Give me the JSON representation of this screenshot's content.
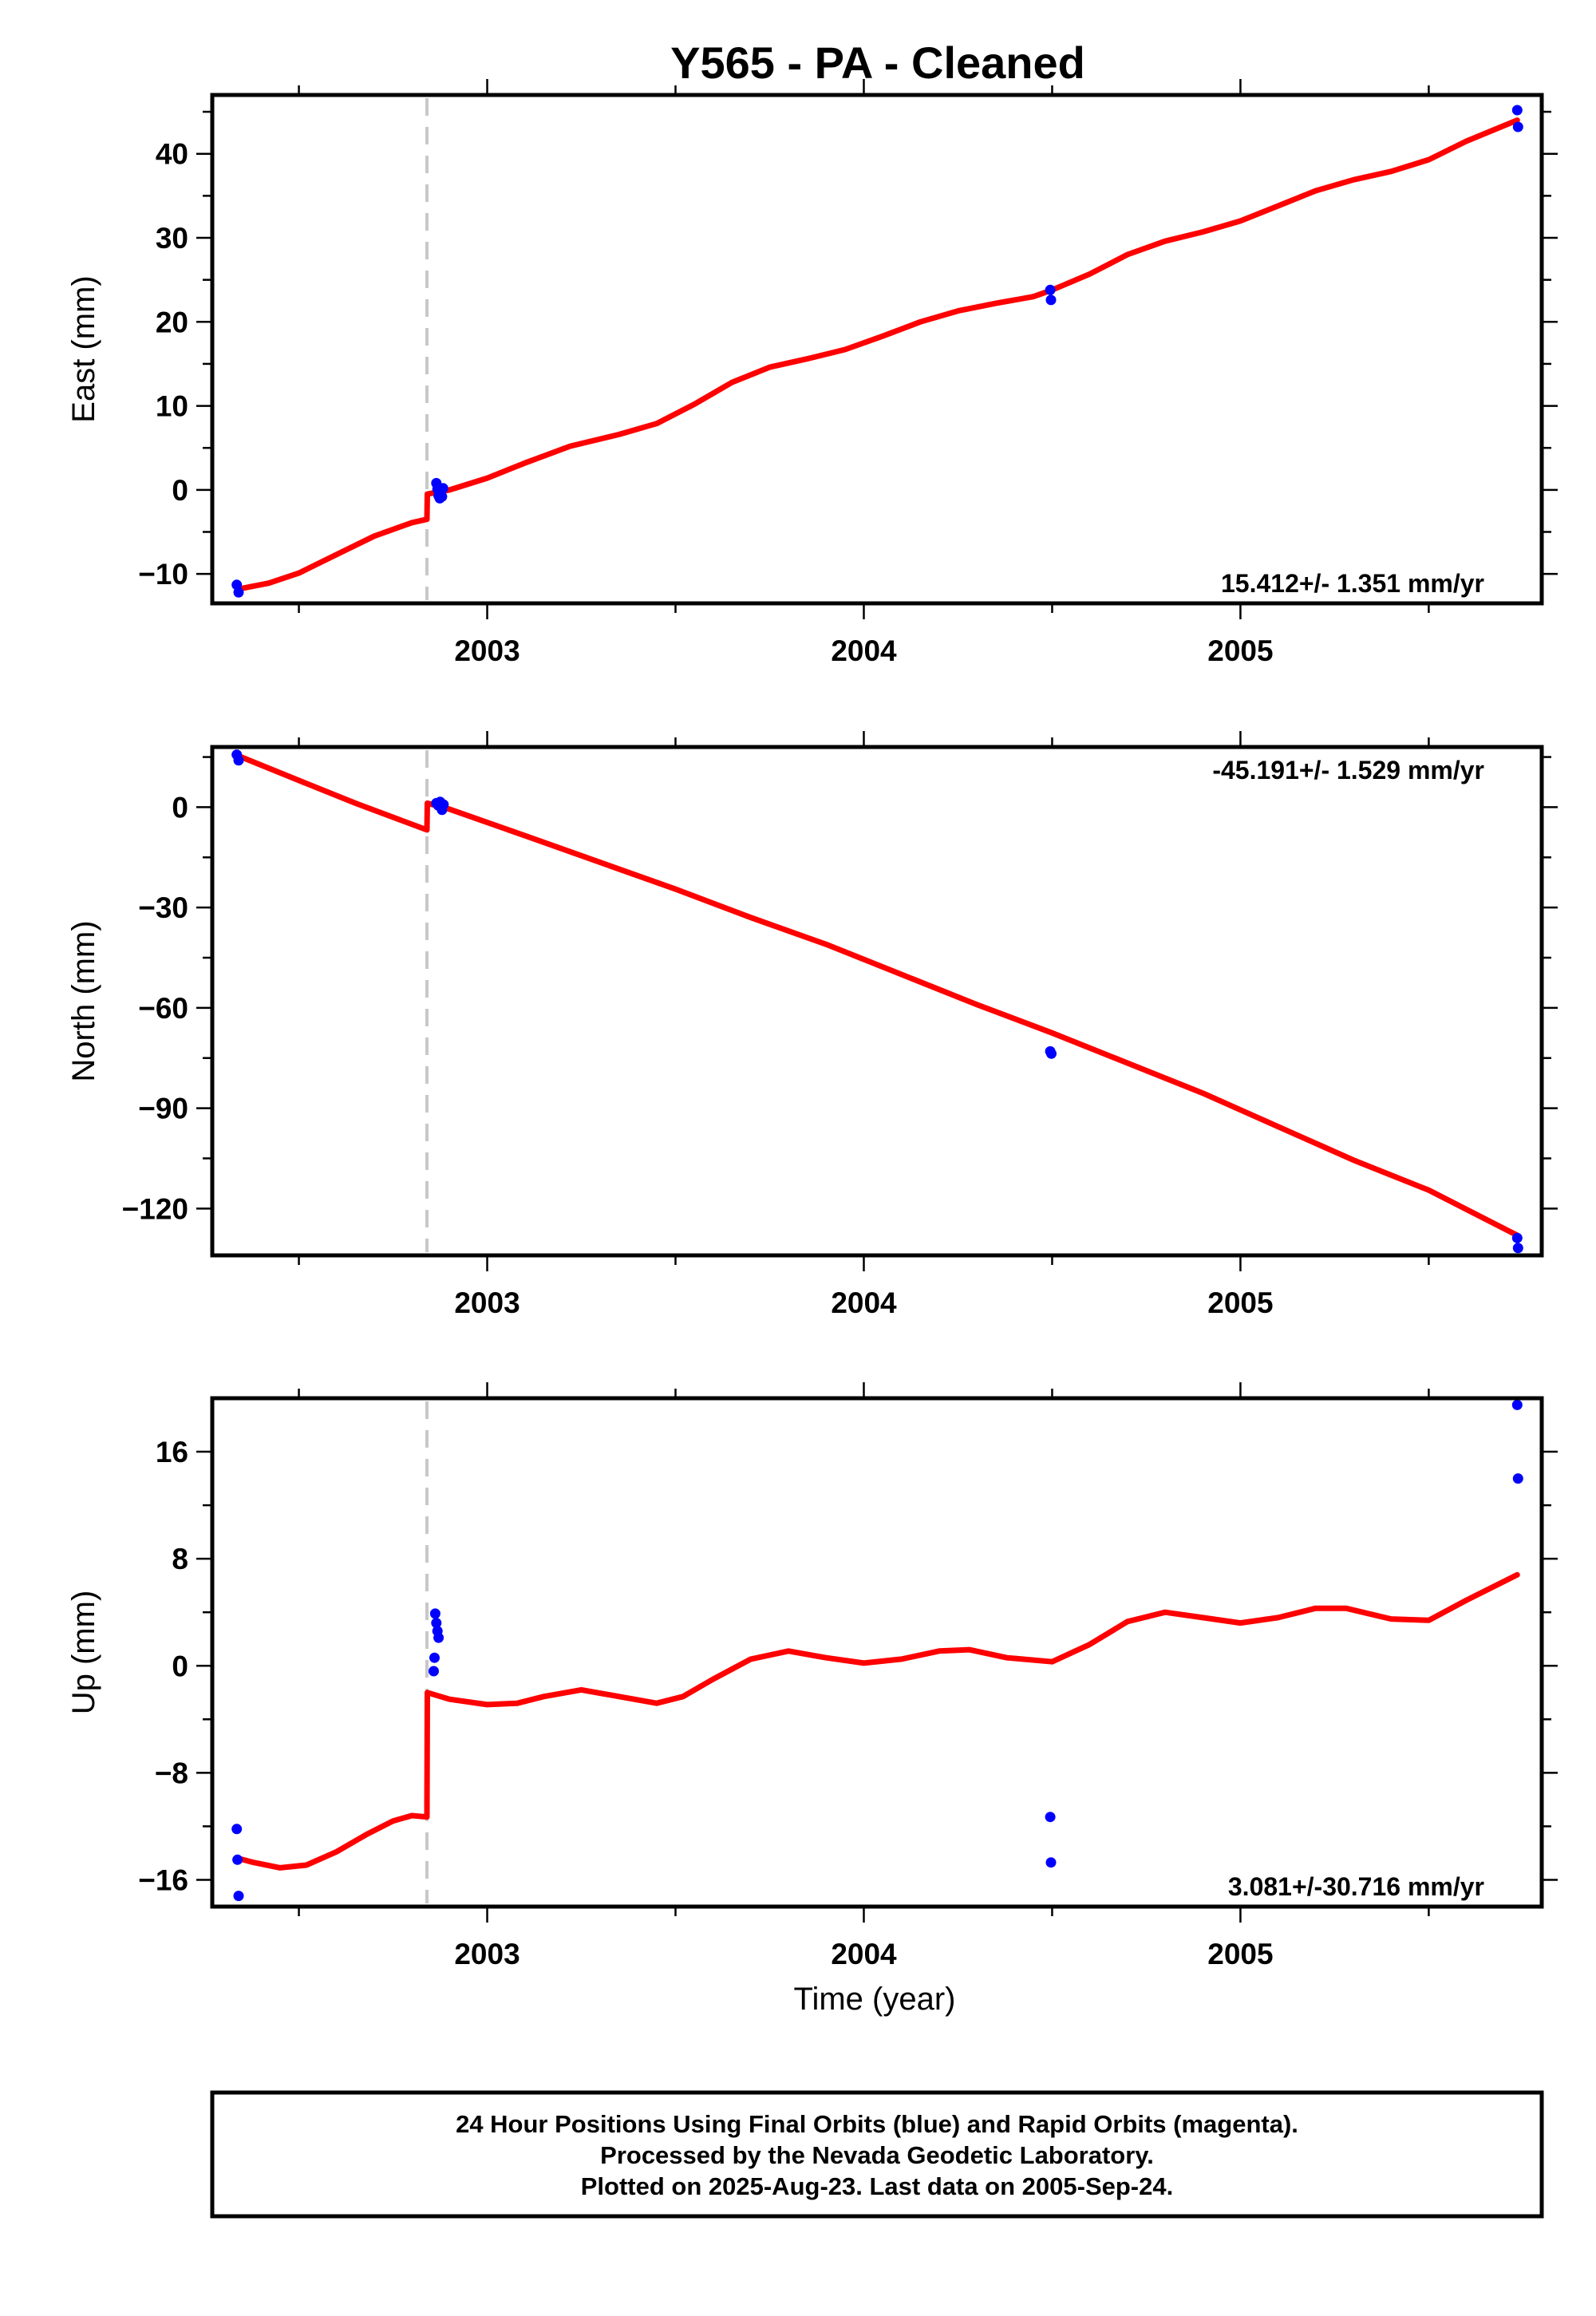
{
  "figure": {
    "title": "Y565  - PA - Cleaned",
    "xlabel": "Time (year)",
    "equipment_change_year": 2002.84,
    "footer": [
      "24 Hour Positions Using Final Orbits (blue) and Rapid Orbits (magenta).",
      "Processed by the Nevada Geodetic Laboratory.",
      "Plotted on 2025-Aug-23. Last data on 2005-Sep-24."
    ],
    "colors": {
      "data": "#0000ff",
      "model": "#ff0000",
      "equipment_line": "#c8c8c8"
    }
  },
  "chart_data": [
    {
      "type": "scatter",
      "panel": "east",
      "ylabel": "East (mm)",
      "rate": "15.412+/- 1.351 mm/yr",
      "rate_position": "bottom-right",
      "xlim": [
        2002.27,
        2005.8
      ],
      "ylim": [
        -13.5,
        47
      ],
      "xticks": [
        2003,
        2004,
        2005
      ],
      "xminor": [
        2002.5,
        2003.5,
        2004.5,
        2005.5
      ],
      "yticks": [
        -10,
        0,
        10,
        20,
        30,
        40
      ],
      "yminor": [
        -5,
        5,
        15,
        25,
        35,
        45
      ],
      "points": [
        [
          2002.335,
          -11.3
        ],
        [
          2002.34,
          -12.2
        ],
        [
          2002.865,
          0.8
        ],
        [
          2002.868,
          0.1
        ],
        [
          2002.871,
          -0.7
        ],
        [
          2002.874,
          -1.0
        ],
        [
          2002.877,
          -0.4
        ],
        [
          2002.88,
          -0.8
        ],
        [
          2002.883,
          0.2
        ],
        [
          2004.495,
          23.8
        ],
        [
          2004.497,
          22.6
        ],
        [
          2005.735,
          45.2
        ],
        [
          2005.737,
          43.2
        ]
      ],
      "model": [
        [
          2002.34,
          -11.8
        ],
        [
          2002.42,
          -11.1
        ],
        [
          2002.5,
          -9.9
        ],
        [
          2002.6,
          -7.7
        ],
        [
          2002.7,
          -5.5
        ],
        [
          2002.8,
          -3.9
        ],
        [
          2002.84,
          -3.5
        ],
        [
          2002.841,
          -0.5
        ],
        [
          2002.9,
          0.0
        ],
        [
          2003.0,
          1.4
        ],
        [
          2003.1,
          3.2
        ],
        [
          2003.22,
          5.2
        ],
        [
          2003.35,
          6.6
        ],
        [
          2003.45,
          7.9
        ],
        [
          2003.55,
          10.2
        ],
        [
          2003.65,
          12.8
        ],
        [
          2003.75,
          14.6
        ],
        [
          2003.85,
          15.6
        ],
        [
          2003.95,
          16.7
        ],
        [
          2004.05,
          18.3
        ],
        [
          2004.15,
          20.0
        ],
        [
          2004.25,
          21.3
        ],
        [
          2004.35,
          22.2
        ],
        [
          2004.45,
          23.0
        ],
        [
          2004.5,
          23.8
        ],
        [
          2004.6,
          25.7
        ],
        [
          2004.7,
          28.0
        ],
        [
          2004.8,
          29.6
        ],
        [
          2004.9,
          30.7
        ],
        [
          2005.0,
          32.0
        ],
        [
          2005.1,
          33.8
        ],
        [
          2005.2,
          35.6
        ],
        [
          2005.3,
          36.9
        ],
        [
          2005.4,
          37.9
        ],
        [
          2005.5,
          39.3
        ],
        [
          2005.6,
          41.5
        ],
        [
          2005.735,
          44.0
        ]
      ]
    },
    {
      "type": "scatter",
      "panel": "north",
      "ylabel": "North (mm)",
      "rate": "-45.191+/- 1.529 mm/yr",
      "rate_position": "top-right",
      "xlim": [
        2002.27,
        2005.8
      ],
      "ylim": [
        -134,
        18
      ],
      "xticks": [
        2003,
        2004,
        2005
      ],
      "xminor": [
        2002.5,
        2003.5,
        2004.5,
        2005.5
      ],
      "yticks": [
        -120,
        -90,
        -60,
        -30,
        0
      ],
      "yminor": [
        -105,
        -75,
        -45,
        -15,
        15
      ],
      "points": [
        [
          2002.335,
          15.7
        ],
        [
          2002.34,
          14.0
        ],
        [
          2002.865,
          1.2
        ],
        [
          2002.87,
          0.5
        ],
        [
          2002.875,
          1.6
        ],
        [
          2002.88,
          -0.8
        ],
        [
          2002.884,
          0.8
        ],
        [
          2004.495,
          -73.0
        ],
        [
          2004.498,
          -73.7
        ],
        [
          2005.735,
          -128.8
        ],
        [
          2005.737,
          -131.8
        ]
      ],
      "model": [
        [
          2002.34,
          15.3
        ],
        [
          2002.5,
          8.0
        ],
        [
          2002.65,
          1.2
        ],
        [
          2002.84,
          -6.8
        ],
        [
          2002.841,
          1.2
        ],
        [
          2002.9,
          -0.6
        ],
        [
          2003.1,
          -8.5
        ],
        [
          2003.3,
          -16.5
        ],
        [
          2003.5,
          -24.5
        ],
        [
          2003.7,
          -33.0
        ],
        [
          2003.9,
          -41.0
        ],
        [
          2004.1,
          -50.0
        ],
        [
          2004.3,
          -59.0
        ],
        [
          2004.5,
          -67.5
        ],
        [
          2004.7,
          -76.5
        ],
        [
          2004.9,
          -85.5
        ],
        [
          2005.1,
          -95.5
        ],
        [
          2005.3,
          -105.5
        ],
        [
          2005.5,
          -114.5
        ],
        [
          2005.735,
          -128.0
        ]
      ]
    },
    {
      "type": "scatter",
      "panel": "up",
      "ylabel": "Up (mm)",
      "rate": "3.081+/-30.716 mm/yr",
      "rate_position": "bottom-right",
      "xlim": [
        2002.27,
        2005.8
      ],
      "ylim": [
        -18,
        20
      ],
      "xticks": [
        2003,
        2004,
        2005
      ],
      "xminor": [
        2002.5,
        2003.5,
        2004.5,
        2005.5
      ],
      "yticks": [
        -16,
        -8,
        0,
        8,
        16
      ],
      "yminor": [
        -12,
        -4,
        4,
        12
      ],
      "points": [
        [
          2002.335,
          -12.2
        ],
        [
          2002.337,
          -14.5
        ],
        [
          2002.34,
          -17.2
        ],
        [
          2002.862,
          3.9
        ],
        [
          2002.865,
          3.2
        ],
        [
          2002.868,
          2.6
        ],
        [
          2002.871,
          2.1
        ],
        [
          2002.86,
          0.6
        ],
        [
          2002.858,
          -0.4
        ],
        [
          2004.495,
          -11.3
        ],
        [
          2004.497,
          -14.7
        ],
        [
          2005.735,
          19.5
        ],
        [
          2005.737,
          14.0
        ]
      ],
      "model": [
        [
          2002.34,
          -14.4
        ],
        [
          2002.38,
          -14.7
        ],
        [
          2002.45,
          -15.1
        ],
        [
          2002.52,
          -14.9
        ],
        [
          2002.6,
          -13.9
        ],
        [
          2002.68,
          -12.6
        ],
        [
          2002.75,
          -11.6
        ],
        [
          2002.8,
          -11.2
        ],
        [
          2002.84,
          -11.3
        ],
        [
          2002.841,
          -2.0
        ],
        [
          2002.9,
          -2.5
        ],
        [
          2003.0,
          -2.9
        ],
        [
          2003.08,
          -2.8
        ],
        [
          2003.15,
          -2.3
        ],
        [
          2003.25,
          -1.8
        ],
        [
          2003.35,
          -2.3
        ],
        [
          2003.45,
          -2.8
        ],
        [
          2003.52,
          -2.3
        ],
        [
          2003.6,
          -1.0
        ],
        [
          2003.7,
          0.5
        ],
        [
          2003.8,
          1.1
        ],
        [
          2003.9,
          0.6
        ],
        [
          2004.0,
          0.2
        ],
        [
          2004.1,
          0.5
        ],
        [
          2004.2,
          1.1
        ],
        [
          2004.28,
          1.2
        ],
        [
          2004.38,
          0.6
        ],
        [
          2004.5,
          0.3
        ],
        [
          2004.6,
          1.6
        ],
        [
          2004.7,
          3.3
        ],
        [
          2004.8,
          4.0
        ],
        [
          2004.9,
          3.6
        ],
        [
          2005.0,
          3.2
        ],
        [
          2005.1,
          3.6
        ],
        [
          2005.2,
          4.3
        ],
        [
          2005.28,
          4.3
        ],
        [
          2005.4,
          3.5
        ],
        [
          2005.5,
          3.4
        ],
        [
          2005.6,
          4.9
        ],
        [
          2005.735,
          6.8
        ]
      ]
    }
  ]
}
